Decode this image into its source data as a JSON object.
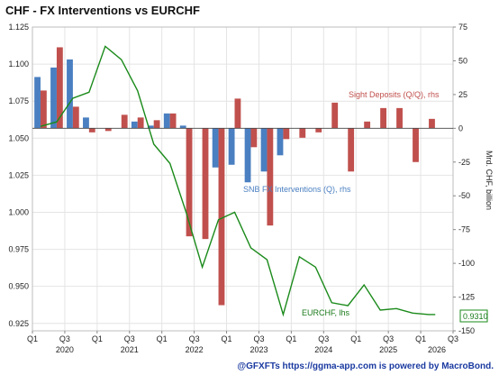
{
  "chart_data": {
    "type": "bar+line",
    "title": "CHF - FX Interventions vs EURCHF",
    "left_axis": {
      "label": "",
      "ylim": [
        0.92,
        1.125
      ],
      "ticks": [
        "1.125",
        "1.100",
        "1.075",
        "1.050",
        "1.025",
        "1.000",
        "0.975",
        "0.950",
        "0.925"
      ]
    },
    "right_axis": {
      "label": "Mrd. CHF, billion",
      "ylim": [
        -150,
        75
      ],
      "ticks": [
        "75",
        "50",
        "25",
        "0",
        "-25",
        "-50",
        "-75",
        "-100",
        "-125",
        "-150"
      ]
    },
    "x_axis": {
      "range": [
        2020.0,
        2026.5
      ],
      "quarter_ticks": [
        {
          "x": 2020.0,
          "label": "Q1"
        },
        {
          "x": 2020.5,
          "label": "Q3"
        },
        {
          "x": 2021.0,
          "label": "Q1"
        },
        {
          "x": 2021.5,
          "label": "Q3"
        },
        {
          "x": 2022.0,
          "label": "Q1"
        },
        {
          "x": 2022.5,
          "label": "Q3"
        },
        {
          "x": 2023.0,
          "label": "Q1"
        },
        {
          "x": 2023.5,
          "label": "Q3"
        },
        {
          "x": 2024.0,
          "label": "Q1"
        },
        {
          "x": 2024.5,
          "label": "Q3"
        },
        {
          "x": 2025.0,
          "label": "Q1"
        },
        {
          "x": 2025.5,
          "label": "Q3"
        },
        {
          "x": 2026.0,
          "label": "Q1"
        },
        {
          "x": 2026.5,
          "label": "Q3"
        }
      ],
      "year_labels": [
        {
          "x": 2020.5,
          "label": "2020"
        },
        {
          "x": 2021.5,
          "label": "2021"
        },
        {
          "x": 2022.5,
          "label": "2022"
        },
        {
          "x": 2023.5,
          "label": "2023"
        },
        {
          "x": 2024.5,
          "label": "2024"
        },
        {
          "x": 2025.5,
          "label": "2025"
        },
        {
          "x": 2026.25,
          "label": "2026"
        }
      ]
    },
    "series": [
      {
        "name": "SNB FX Interventions (Q), rhs",
        "kind": "bar",
        "axis": "right",
        "color": "#4a7fc1",
        "x": [
          2020.0,
          2020.25,
          2020.5,
          2020.75,
          2021.0,
          2021.25,
          2021.5,
          2021.75,
          2022.0,
          2022.25,
          2022.5,
          2022.75,
          2023.0,
          2023.25,
          2023.5,
          2023.75,
          2024.0,
          2024.25,
          2024.5,
          2024.75,
          2025.0,
          2025.25,
          2025.5,
          2025.75,
          2026.0
        ],
        "values": [
          38,
          45,
          51,
          8,
          0,
          0,
          5,
          2,
          11,
          2,
          0,
          -29,
          -27,
          -40,
          -32,
          -20,
          0,
          0,
          0,
          0,
          0,
          0,
          0,
          0,
          0
        ]
      },
      {
        "name": "Sight Deposits (Q/Q), rhs",
        "kind": "bar",
        "axis": "right",
        "color": "#c0504d",
        "x": [
          2020.0,
          2020.25,
          2020.5,
          2020.75,
          2021.0,
          2021.25,
          2021.5,
          2021.75,
          2022.0,
          2022.25,
          2022.5,
          2022.75,
          2023.0,
          2023.25,
          2023.5,
          2023.75,
          2024.0,
          2024.25,
          2024.5,
          2024.75,
          2025.0,
          2025.25,
          2025.5,
          2025.75,
          2026.0
        ],
        "values": [
          28,
          60,
          16,
          -3,
          -2,
          10,
          8,
          6,
          11,
          -80,
          -82,
          -131,
          22,
          -14,
          -72,
          -8,
          -7,
          -3,
          19,
          -32,
          5,
          15,
          15,
          -25,
          7
        ]
      },
      {
        "name": "EURCHF, lhs",
        "kind": "line",
        "axis": "left",
        "color": "#1a8a1a",
        "x": [
          2020.0,
          2020.25,
          2020.5,
          2020.75,
          2021.0,
          2021.25,
          2021.5,
          2021.75,
          2022.0,
          2022.25,
          2022.5,
          2022.75,
          2023.0,
          2023.25,
          2023.5,
          2023.75,
          2024.0,
          2024.25,
          2024.5,
          2024.75,
          2025.0,
          2025.25,
          2025.5,
          2025.75,
          2026.0,
          2026.1
        ],
        "values": [
          1.058,
          1.061,
          1.077,
          1.081,
          1.112,
          1.103,
          1.082,
          1.046,
          1.033,
          1.0,
          0.963,
          0.995,
          1.0,
          0.976,
          0.968,
          0.931,
          0.97,
          0.963,
          0.939,
          0.937,
          0.951,
          0.934,
          0.935,
          0.932,
          0.931,
          0.931
        ]
      }
    ],
    "annotations": {
      "sight": "Sight Deposits (Q/Q), rhs",
      "snb": "SNB FX Interventions (Q), rhs",
      "eurchf": "EURCHF, lhs",
      "last_value": "0.9310"
    },
    "grid": true,
    "legend": "inline"
  },
  "footer": "@GFXFTs https://ggma-app.com is powered by MacroBond."
}
